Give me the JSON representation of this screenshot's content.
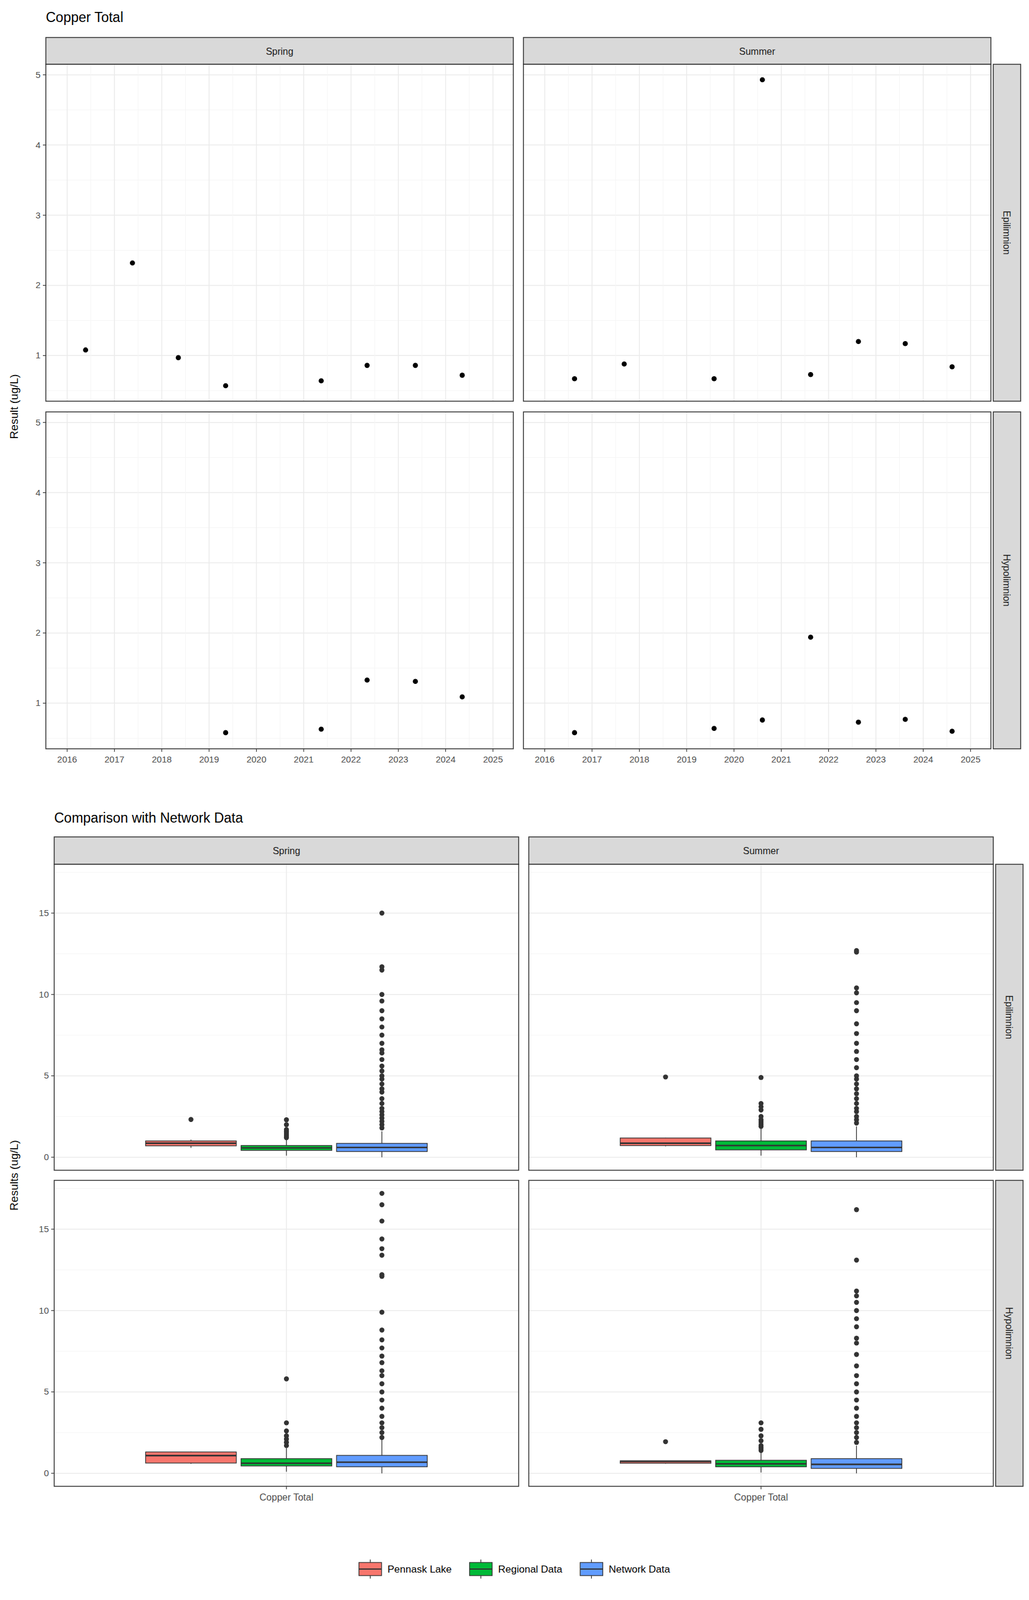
{
  "chart_data": [
    {
      "type": "scatter",
      "title": "Copper Total",
      "y_label": "Result (ug/L)",
      "color": "#000000",
      "grid": true,
      "xlim": [
        2015.55,
        2025.43
      ],
      "xticks": [
        2016,
        2017,
        2018,
        2019,
        2020,
        2021,
        2022,
        2023,
        2024,
        2025
      ],
      "ylim": [
        0.35,
        5.15
      ],
      "yticks": [
        1,
        2,
        3,
        4,
        5
      ],
      "rows": [
        "Epilimnion",
        "Hypolimnion"
      ],
      "columns": [
        {
          "label": "Spring",
          "panels": [
            {
              "x": [
                2016.39,
                2017.38,
                2018.35,
                2019.35,
                2021.37,
                2022.34,
                2023.36,
                2024.35
              ],
              "values": [
                1.08,
                2.32,
                0.97,
                0.57,
                0.64,
                0.86,
                0.86,
                0.72
              ]
            },
            {
              "x": [
                2019.35,
                2021.37,
                2022.34,
                2023.36,
                2024.35
              ],
              "values": [
                0.58,
                0.63,
                1.33,
                1.31,
                1.09
              ]
            }
          ]
        },
        {
          "label": "Summer",
          "panels": [
            {
              "x": [
                2016.63,
                2017.68,
                2019.58,
                2020.6,
                2021.62,
                2022.63,
                2023.62,
                2024.61
              ],
              "values": [
                0.67,
                0.88,
                0.67,
                4.93,
                0.73,
                1.2,
                1.17,
                0.84
              ]
            },
            {
              "x": [
                2016.63,
                2019.58,
                2020.6,
                2021.62,
                2022.63,
                2023.62,
                2024.61
              ],
              "values": [
                0.58,
                0.64,
                0.76,
                1.94,
                0.73,
                0.77,
                0.6
              ]
            }
          ]
        }
      ]
    },
    {
      "type": "box",
      "title": "Comparison with Network Data",
      "y_label": "Results (ug/L)",
      "grid": true,
      "legend": "bottom",
      "categories": [
        "Copper Total"
      ],
      "ylim": [
        -0.8,
        18.0
      ],
      "yticks": [
        0,
        5,
        10,
        15
      ],
      "rows": [
        "Epilimnion",
        "Hypolimnion"
      ],
      "series": [
        {
          "name": "Pennask Lake",
          "color": "#F8766D"
        },
        {
          "name": "Regional Data",
          "color": "#00BA38"
        },
        {
          "name": "Network Data",
          "color": "#619CFF"
        }
      ],
      "columns": [
        {
          "label": "Spring",
          "panels": [
            {
              "boxes": [
                {
                  "whisker_low": 0.57,
                  "q1": 0.7,
                  "median": 0.86,
                  "q3": 1.0,
                  "whisker_high": 1.08,
                  "outliers": [
                    2.32
                  ]
                },
                {
                  "whisker_low": 0.1,
                  "q1": 0.42,
                  "median": 0.57,
                  "q3": 0.72,
                  "whisker_high": 1.15,
                  "outliers": [
                    1.2,
                    1.3,
                    1.4,
                    1.5,
                    1.6,
                    1.7,
                    2.0,
                    2.3
                  ]
                },
                {
                  "whisker_low": 0.0,
                  "q1": 0.35,
                  "median": 0.6,
                  "q3": 0.85,
                  "whisker_high": 1.6,
                  "outliers": [
                    1.8,
                    2.0,
                    2.2,
                    2.4,
                    2.6,
                    2.8,
                    3.0,
                    3.3,
                    3.6,
                    4.0,
                    4.2,
                    4.5,
                    4.8,
                    5.0,
                    5.3,
                    5.6,
                    6.0,
                    6.4,
                    6.6,
                    7.0,
                    7.5,
                    8.0,
                    8.5,
                    9.0,
                    9.6,
                    10.0,
                    11.5,
                    11.7,
                    15.0
                  ]
                }
              ]
            },
            {
              "boxes": [
                {
                  "whisker_low": 0.58,
                  "q1": 0.63,
                  "median": 1.09,
                  "q3": 1.31,
                  "whisker_high": 1.33,
                  "outliers": []
                },
                {
                  "whisker_low": 0.1,
                  "q1": 0.45,
                  "median": 0.62,
                  "q3": 0.9,
                  "whisker_high": 1.55,
                  "outliers": [
                    1.7,
                    1.9,
                    2.1,
                    2.3,
                    2.6,
                    3.1,
                    5.8
                  ]
                },
                {
                  "whisker_low": 0.0,
                  "q1": 0.4,
                  "median": 0.68,
                  "q3": 1.1,
                  "whisker_high": 2.1,
                  "outliers": [
                    2.2,
                    2.5,
                    2.8,
                    3.1,
                    3.5,
                    4.0,
                    4.5,
                    5.0,
                    5.5,
                    6.0,
                    6.3,
                    6.8,
                    7.2,
                    7.7,
                    8.2,
                    8.8,
                    9.9,
                    12.1,
                    12.2,
                    13.4,
                    13.8,
                    14.4,
                    15.5,
                    16.5,
                    17.2
                  ]
                }
              ]
            }
          ]
        },
        {
          "label": "Summer",
          "panels": [
            {
              "boxes": [
                {
                  "whisker_low": 0.67,
                  "q1": 0.715,
                  "median": 0.86,
                  "q3": 1.18,
                  "whisker_high": 1.2,
                  "outliers": [
                    4.93
                  ]
                },
                {
                  "whisker_low": 0.1,
                  "q1": 0.45,
                  "median": 0.72,
                  "q3": 1.0,
                  "whisker_high": 1.8,
                  "outliers": [
                    1.9,
                    2.0,
                    2.1,
                    2.2,
                    2.3,
                    2.5,
                    2.9,
                    3.1,
                    3.3,
                    4.9
                  ]
                },
                {
                  "whisker_low": 0.0,
                  "q1": 0.35,
                  "median": 0.6,
                  "q3": 1.0,
                  "whisker_high": 1.9,
                  "outliers": [
                    2.1,
                    2.3,
                    2.5,
                    2.8,
                    3.0,
                    3.3,
                    3.6,
                    3.9,
                    4.2,
                    4.5,
                    4.8,
                    5.0,
                    5.5,
                    6.0,
                    6.5,
                    7.0,
                    7.6,
                    8.2,
                    9.0,
                    9.5,
                    10.1,
                    10.4,
                    12.6,
                    12.7
                  ]
                }
              ]
            },
            {
              "boxes": [
                {
                  "whisker_low": 0.58,
                  "q1": 0.62,
                  "median": 0.73,
                  "q3": 0.765,
                  "whisker_high": 0.77,
                  "outliers": [
                    1.94
                  ]
                },
                {
                  "whisker_low": 0.05,
                  "q1": 0.4,
                  "median": 0.58,
                  "q3": 0.8,
                  "whisker_high": 1.3,
                  "outliers": [
                    1.4,
                    1.5,
                    1.6,
                    1.7,
                    2.0,
                    2.3,
                    2.7,
                    3.1
                  ]
                },
                {
                  "whisker_low": 0.0,
                  "q1": 0.3,
                  "median": 0.55,
                  "q3": 0.9,
                  "whisker_high": 1.7,
                  "outliers": [
                    1.9,
                    2.2,
                    2.5,
                    2.8,
                    3.1,
                    3.5,
                    4.0,
                    4.5,
                    5.0,
                    5.5,
                    6.0,
                    6.6,
                    7.3,
                    8.0,
                    8.3,
                    9.0,
                    9.5,
                    10.0,
                    10.5,
                    10.9,
                    11.2,
                    13.1,
                    16.2
                  ]
                }
              ]
            }
          ]
        }
      ]
    }
  ]
}
